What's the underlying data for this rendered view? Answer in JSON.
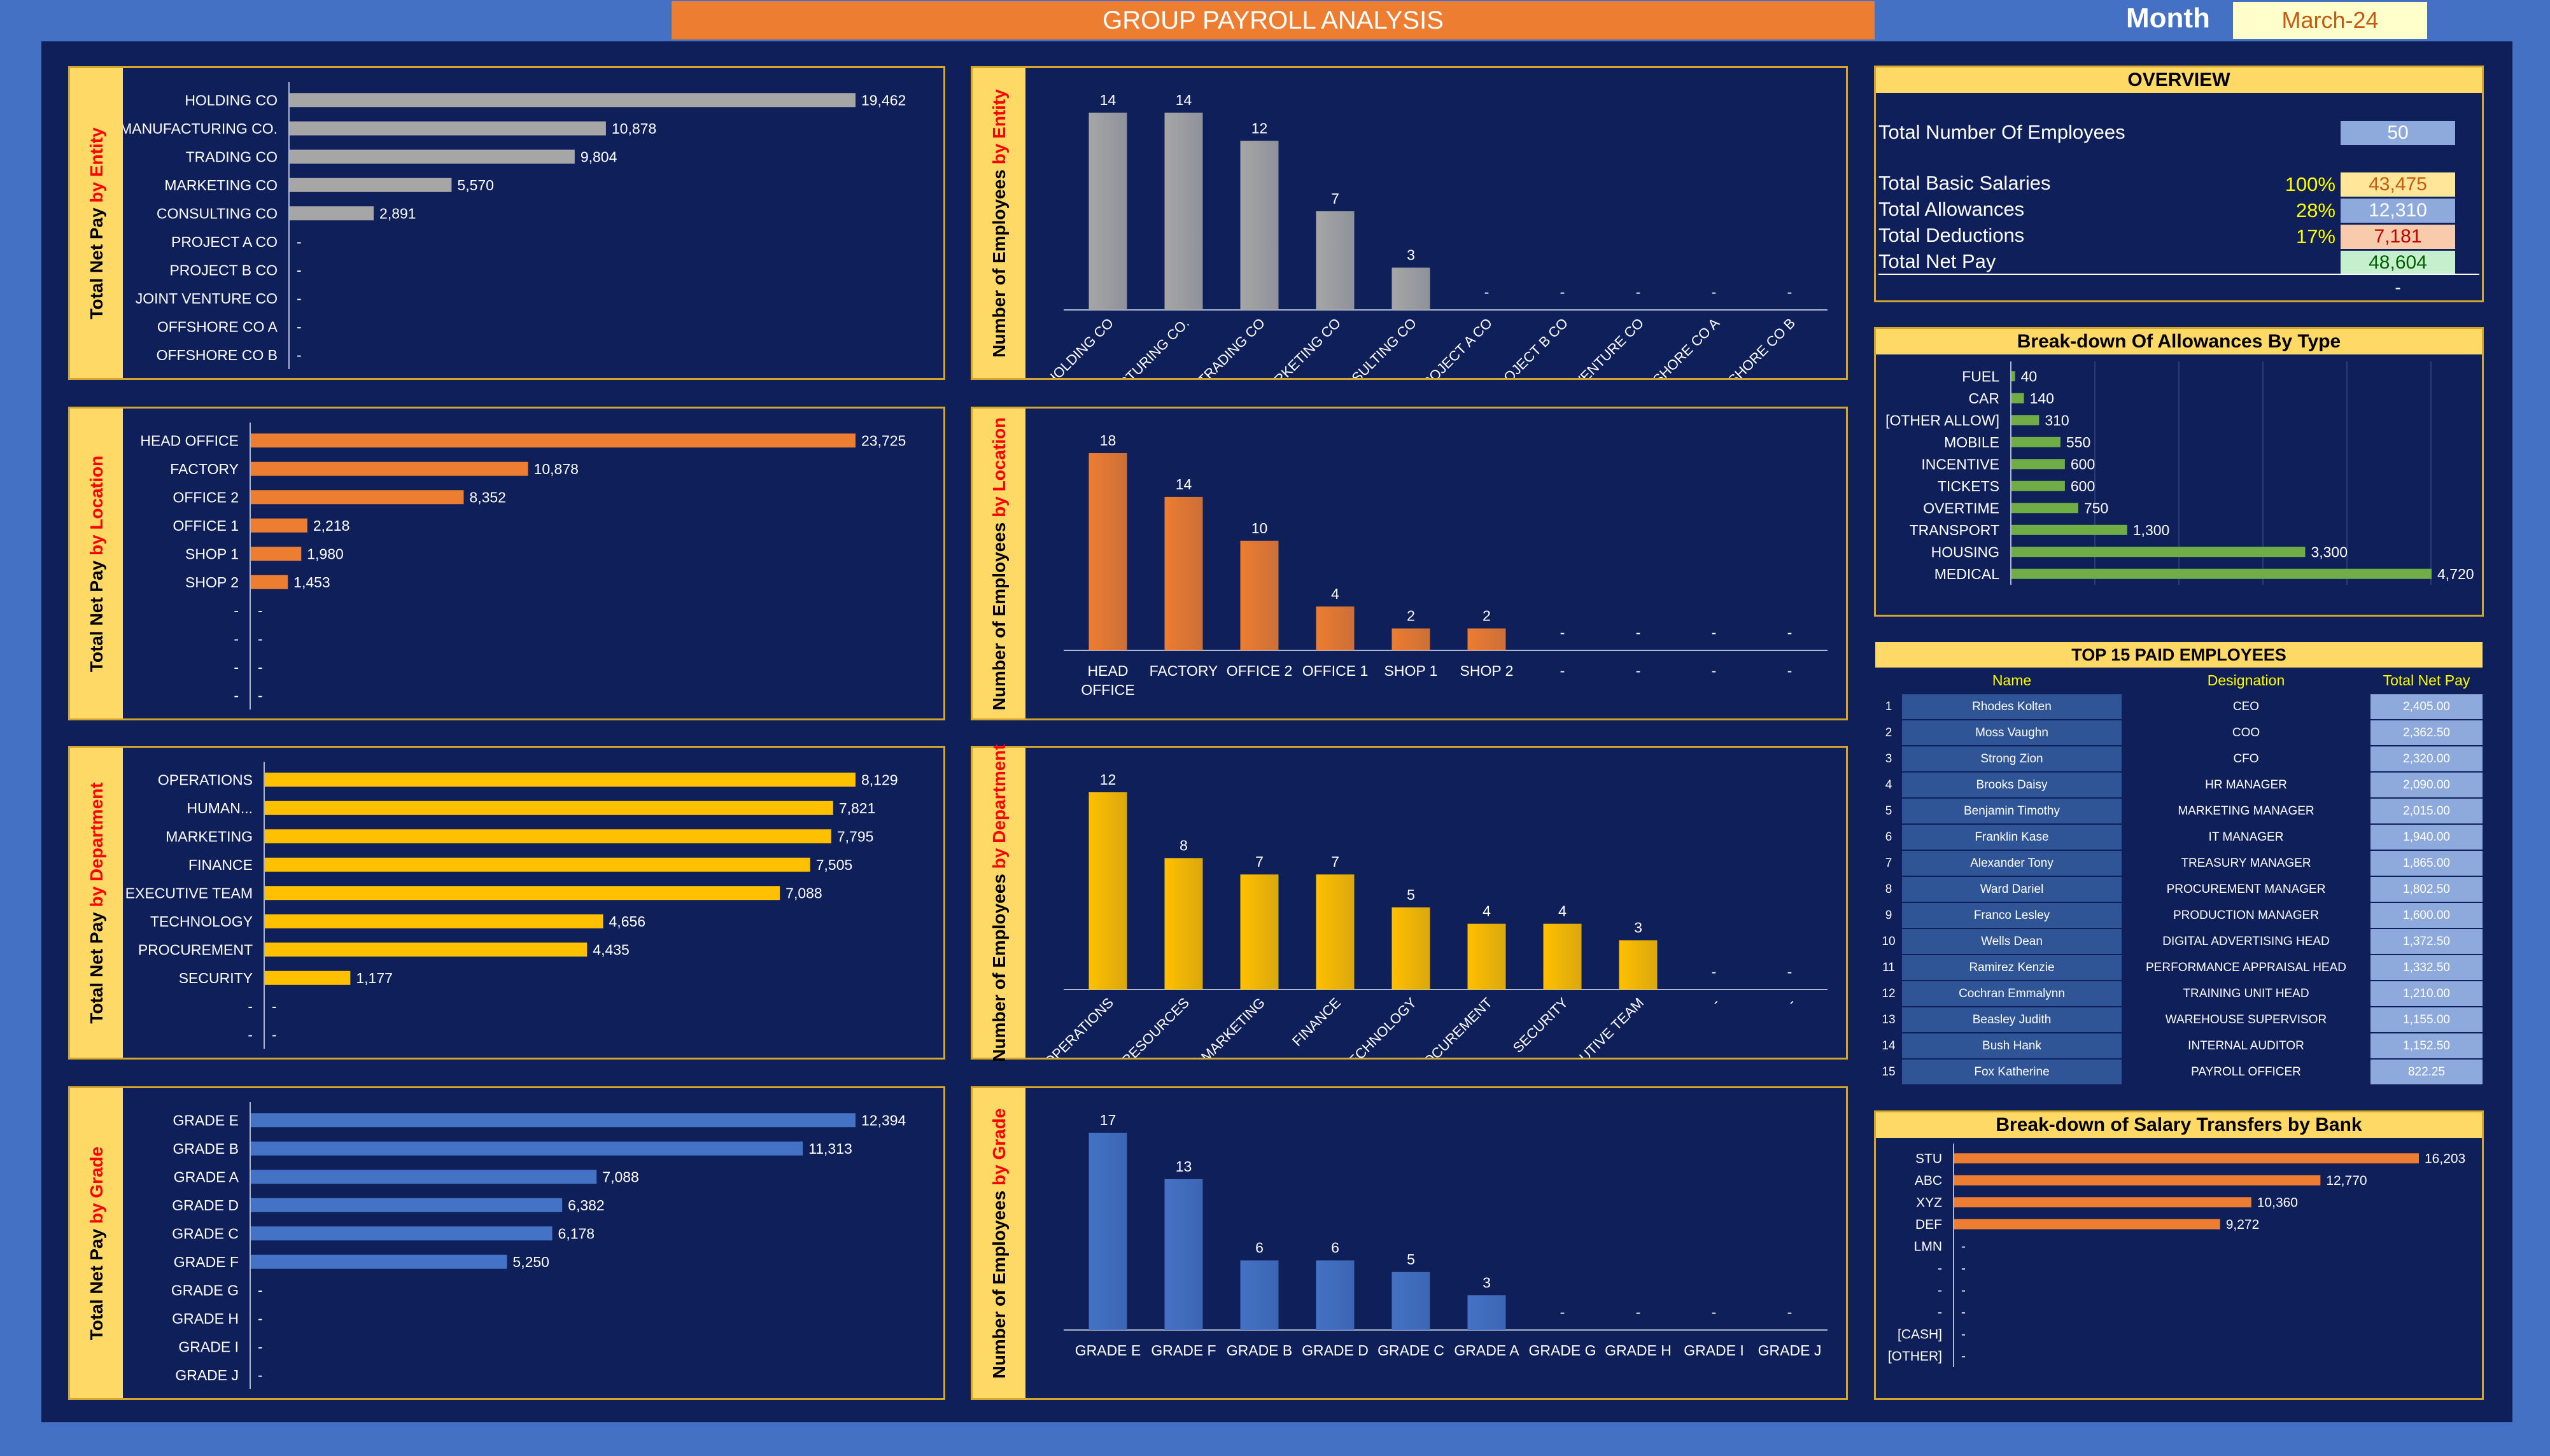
{
  "header": {
    "title": "GROUP PAYROLL ANALYSIS",
    "month_label": "Month",
    "month_value": "March-24"
  },
  "panels": {
    "pay_entity": {
      "label": "Total Net Pay ",
      "accent": "by Entity"
    },
    "emp_entity": {
      "label": "Number of Employees ",
      "accent": "by Entity"
    },
    "pay_location": {
      "label": "Total Net Pay ",
      "accent": "by Location"
    },
    "emp_location": {
      "label": "Number of Employees ",
      "accent": "by Location"
    },
    "pay_department": {
      "label": "Total Net Pay ",
      "accent": "by Department"
    },
    "emp_department": {
      "label": "Number of Employees ",
      "accent": "by Department"
    },
    "pay_grade": {
      "label": "Total Net Pay ",
      "accent": "by Grade"
    },
    "emp_grade": {
      "label": "Number of Employees ",
      "accent": "by Grade"
    }
  },
  "overview": {
    "title": "OVERVIEW",
    "rows": [
      {
        "label": "Total Number Of Employees",
        "pct": "",
        "value": "50"
      },
      {
        "label": "Total Basic Salaries",
        "pct": "100%",
        "value": "43,475"
      },
      {
        "label": "Total Allowances",
        "pct": "28%",
        "value": "12,310"
      },
      {
        "label": "Total Deductions",
        "pct": "17%",
        "value": "7,181"
      },
      {
        "label": "Total Net Pay",
        "pct": "",
        "value": "48,604"
      }
    ],
    "extra": "-"
  },
  "allowances_title": "Break-down Of Allowances By Type",
  "top15": {
    "title": "TOP 15 PAID EMPLOYEES",
    "headers": [
      "Name",
      "Designation",
      "Total Net Pay"
    ],
    "rows": [
      [
        "1",
        "Rhodes Kolten",
        "CEO",
        "2,405.00"
      ],
      [
        "2",
        "Moss Vaughn",
        "COO",
        "2,362.50"
      ],
      [
        "3",
        "Strong Zion",
        "CFO",
        "2,320.00"
      ],
      [
        "4",
        "Brooks Daisy",
        "HR MANAGER",
        "2,090.00"
      ],
      [
        "5",
        "Benjamin Timothy",
        "MARKETING MANAGER",
        "2,015.00"
      ],
      [
        "6",
        "Franklin Kase",
        "IT MANAGER",
        "1,940.00"
      ],
      [
        "7",
        "Alexander Tony",
        "TREASURY MANAGER",
        "1,865.00"
      ],
      [
        "8",
        "Ward Dariel",
        "PROCUREMENT MANAGER",
        "1,802.50"
      ],
      [
        "9",
        "Franco Lesley",
        "PRODUCTION MANAGER",
        "1,600.00"
      ],
      [
        "10",
        "Wells Dean",
        "DIGITAL ADVERTISING HEAD",
        "1,372.50"
      ],
      [
        "11",
        "Ramirez Kenzie",
        "PERFORMANCE APPRAISAL HEAD",
        "1,332.50"
      ],
      [
        "12",
        "Cochran Emmalynn",
        "TRAINING UNIT HEAD",
        "1,210.00"
      ],
      [
        "13",
        "Beasley Judith",
        "WAREHOUSE SUPERVISOR",
        "1,155.00"
      ],
      [
        "14",
        "Bush Hank",
        "INTERNAL AUDITOR",
        "1,152.50"
      ],
      [
        "15",
        "Fox Katherine",
        "PAYROLL OFFICER",
        "822.25"
      ]
    ]
  },
  "bank_title": "Break-down of Salary Transfers by Bank",
  "colors": {
    "gray": "#a6a6a6",
    "orange": "#ed7d31",
    "yellow": "#ffc000",
    "blue": "#4472c4",
    "green": "#70ad47",
    "panel": "#0f1f5a",
    "gold": "#ffd966"
  },
  "chart_data": [
    {
      "id": "pay_entity",
      "type": "bar",
      "orientation": "horizontal",
      "color": "gray",
      "categories": [
        "HOLDING CO",
        "MANUFACTURING CO.",
        "TRADING CO",
        "MARKETING CO",
        "CONSULTING CO",
        "PROJECT A CO",
        "PROJECT B CO",
        "JOINT VENTURE CO",
        "OFFSHORE CO A",
        "OFFSHORE CO B"
      ],
      "values": [
        19462,
        10878,
        9804,
        5570,
        2891,
        0,
        0,
        0,
        0,
        0
      ],
      "labels": [
        "19,462",
        "10,878",
        "9,804",
        "5,570",
        "2,891",
        "-",
        "-",
        "-",
        "-",
        "-"
      ],
      "max": 19462
    },
    {
      "id": "emp_entity",
      "type": "bar",
      "orientation": "vertical",
      "color": "gray",
      "categories": [
        "HOLDING CO",
        "MANUFACTURING CO.",
        "TRADING CO",
        "MARKETING CO",
        "CONSULTING CO",
        "PROJECT A CO",
        "PROJECT B CO",
        "JOINT VENTURE CO",
        "OFFSHORE CO A",
        "OFFSHORE CO B"
      ],
      "values": [
        14,
        14,
        12,
        7,
        3,
        0,
        0,
        0,
        0,
        0
      ],
      "labels": [
        "14",
        "14",
        "12",
        "7",
        "3",
        "-",
        "-",
        "-",
        "-",
        "-"
      ],
      "max": 14
    },
    {
      "id": "pay_location",
      "type": "bar",
      "orientation": "horizontal",
      "color": "orange",
      "categories": [
        "HEAD OFFICE",
        "FACTORY",
        "OFFICE 2",
        "OFFICE 1",
        "SHOP 1",
        "SHOP 2",
        "-",
        "-",
        "-",
        "-"
      ],
      "values": [
        23725,
        10878,
        8352,
        2218,
        1980,
        1453,
        0,
        0,
        0,
        0
      ],
      "labels": [
        "23,725",
        "10,878",
        "8,352",
        "2,218",
        "1,980",
        "1,453",
        "-",
        "-",
        "-",
        "-"
      ],
      "max": 23725
    },
    {
      "id": "emp_location",
      "type": "bar",
      "orientation": "vertical",
      "color": "orange",
      "categories": [
        "HEAD OFFICE",
        "FACTORY",
        "OFFICE 2",
        "OFFICE 1",
        "SHOP 1",
        "SHOP 2",
        "-",
        "-",
        "-",
        "-"
      ],
      "values": [
        18,
        14,
        10,
        4,
        2,
        2,
        0,
        0,
        0,
        0
      ],
      "labels": [
        "18",
        "14",
        "10",
        "4",
        "2",
        "2",
        "-",
        "-",
        "-",
        "-"
      ],
      "max": 18
    },
    {
      "id": "pay_department",
      "type": "bar",
      "orientation": "horizontal",
      "color": "yellow",
      "categories": [
        "OPERATIONS",
        "HUMAN...",
        "MARKETING",
        "FINANCE",
        "EXECUTIVE TEAM",
        "TECHNOLOGY",
        "PROCUREMENT",
        "SECURITY",
        "-",
        "-"
      ],
      "values": [
        8129,
        7821,
        7795,
        7505,
        7088,
        4656,
        4435,
        1177,
        0,
        0
      ],
      "labels": [
        "8,129",
        "7,821",
        "7,795",
        "7,505",
        "7,088",
        "4,656",
        "4,435",
        "1,177",
        "-",
        "-"
      ],
      "max": 8129
    },
    {
      "id": "emp_department",
      "type": "bar",
      "orientation": "vertical",
      "color": "yellow",
      "categories": [
        "OPERATIONS",
        "HUMAN RESOURCES",
        "MARKETING",
        "FINANCE",
        "TECHNOLOGY",
        "PROCUREMENT",
        "SECURITY",
        "EXECUTIVE TEAM",
        "-",
        "-"
      ],
      "values": [
        12,
        8,
        7,
        7,
        5,
        4,
        4,
        3,
        0,
        0
      ],
      "labels": [
        "12",
        "8",
        "7",
        "7",
        "5",
        "4",
        "4",
        "3",
        "-",
        "-"
      ],
      "max": 12
    },
    {
      "id": "pay_grade",
      "type": "bar",
      "orientation": "horizontal",
      "color": "blue",
      "categories": [
        "GRADE E",
        "GRADE B",
        "GRADE A",
        "GRADE D",
        "GRADE C",
        "GRADE F",
        "GRADE G",
        "GRADE H",
        "GRADE I",
        "GRADE J"
      ],
      "values": [
        12394,
        11313,
        7088,
        6382,
        6178,
        5250,
        0,
        0,
        0,
        0
      ],
      "labels": [
        "12,394",
        "11,313",
        "7,088",
        "6,382",
        "6,178",
        "5,250",
        "-",
        "-",
        "-",
        "-"
      ],
      "max": 12394
    },
    {
      "id": "emp_grade",
      "type": "bar",
      "orientation": "vertical",
      "color": "blue",
      "categories": [
        "GRADE E",
        "GRADE F",
        "GRADE B",
        "GRADE D",
        "GRADE C",
        "GRADE A",
        "GRADE G",
        "GRADE H",
        "GRADE I",
        "GRADE J"
      ],
      "values": [
        17,
        13,
        6,
        6,
        5,
        3,
        0,
        0,
        0,
        0
      ],
      "labels": [
        "17",
        "13",
        "6",
        "6",
        "5",
        "3",
        "-",
        "-",
        "-",
        "-"
      ],
      "max": 17
    },
    {
      "id": "allowances",
      "type": "bar",
      "orientation": "horizontal",
      "color": "green",
      "categories": [
        "FUEL",
        "CAR",
        "[OTHER ALLOW]",
        "MOBILE",
        "INCENTIVE",
        "TICKETS",
        "OVERTIME",
        "TRANSPORT",
        "HOUSING",
        "MEDICAL"
      ],
      "values": [
        40,
        140,
        310,
        550,
        600,
        600,
        750,
        1300,
        3300,
        4720
      ],
      "labels": [
        "40",
        "140",
        "310",
        "550",
        "600",
        "600",
        "750",
        "1,300",
        "3,300",
        "4,720"
      ],
      "max": 4720
    },
    {
      "id": "banks",
      "type": "bar",
      "orientation": "horizontal",
      "color": "orange",
      "categories": [
        "STU",
        "ABC",
        "XYZ",
        "DEF",
        "LMN",
        "-",
        "-",
        "-",
        "[CASH]",
        "[OTHER]"
      ],
      "values": [
        16203,
        12770,
        10360,
        9272,
        0,
        0,
        0,
        0,
        0,
        0
      ],
      "labels": [
        "16,203",
        "12,770",
        "10,360",
        "9,272",
        "-",
        "-",
        "-",
        "-",
        "-",
        "-"
      ],
      "max": 16203
    }
  ]
}
